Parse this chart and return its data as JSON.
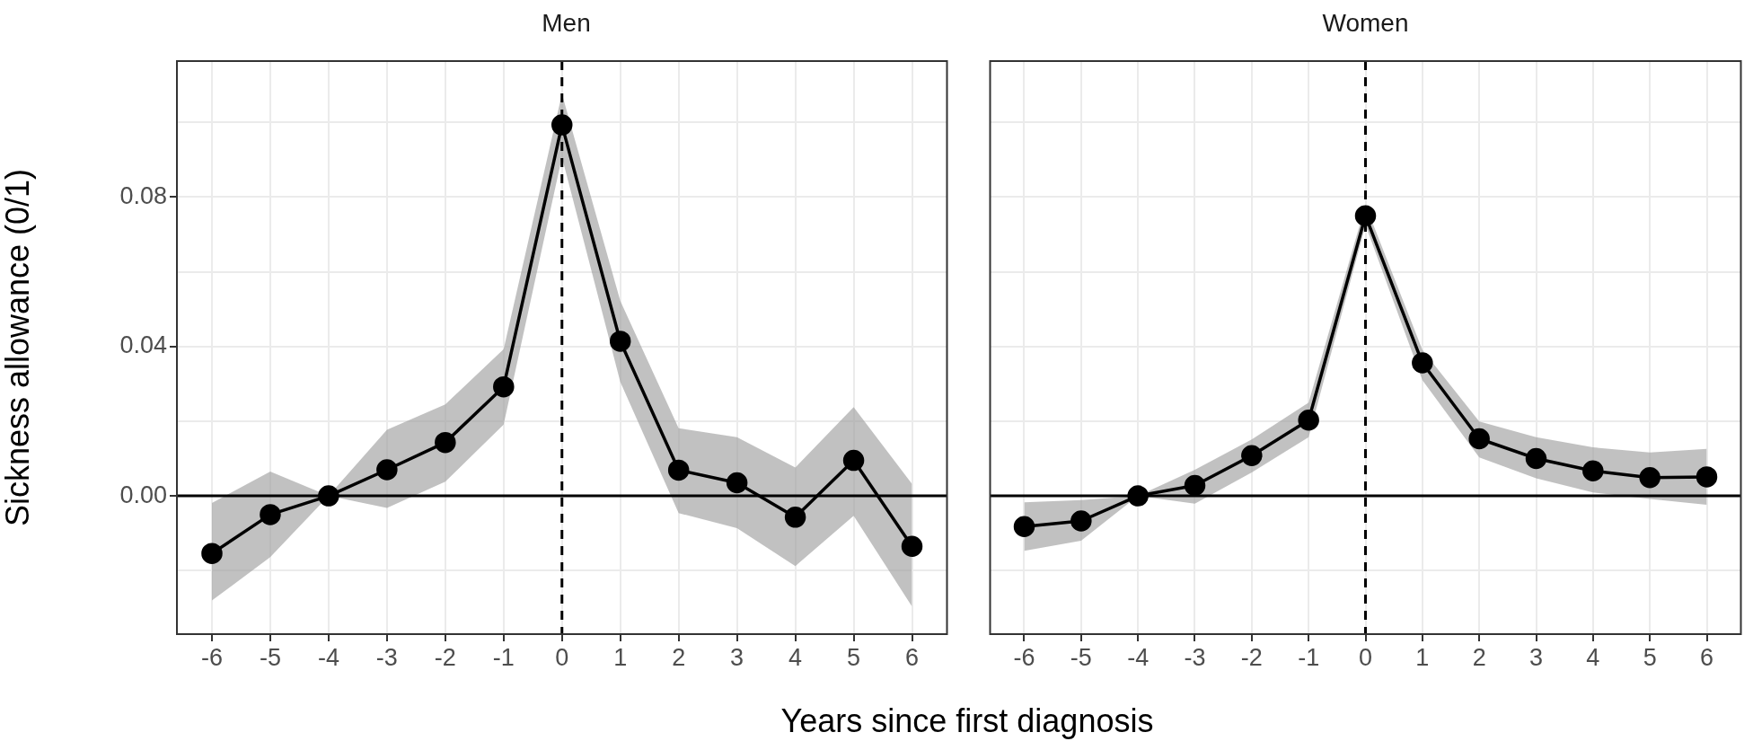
{
  "chart_data": [
    {
      "type": "line",
      "title": "Men",
      "xlabel": "Years since first diagnosis",
      "ylabel": "Sickness allowance (0/1)",
      "x": [
        -6,
        -5,
        -4,
        -3,
        -2,
        -1,
        0,
        1,
        2,
        3,
        4,
        5,
        6
      ],
      "series": [
        {
          "color": "#000000",
          "values": [
            -0.0154,
            -0.005,
            0,
            0.007,
            0.0143,
            0.0292,
            0.0993,
            0.0414,
            0.0069,
            0.0035,
            -0.0057,
            0.0095,
            -0.0135
          ],
          "lower": [
            -0.028,
            -0.0164,
            0,
            -0.0032,
            0.0038,
            0.0191,
            0.0907,
            0.0305,
            -0.0046,
            -0.0086,
            -0.0188,
            -0.0053,
            -0.0296
          ],
          "upper": [
            -0.0019,
            0.0065,
            0,
            0.0177,
            0.0245,
            0.0393,
            0.1076,
            0.0522,
            0.0181,
            0.0157,
            0.0076,
            0.0238,
            0.0032
          ]
        }
      ],
      "xlim": [
        -6.6,
        6.6
      ],
      "xticks": [
        -6,
        -5,
        -4,
        -3,
        -2,
        -1,
        0,
        1,
        2,
        3,
        4,
        5,
        6
      ],
      "ylim": [
        -0.037,
        0.1164
      ],
      "yticks": [
        {
          "value": -0.02,
          "label": null
        },
        {
          "value": 0,
          "label": "0.00"
        },
        {
          "value": 0.02,
          "label": null
        },
        {
          "value": 0.04,
          "label": "0.04"
        },
        {
          "value": 0.06,
          "label": null
        },
        {
          "value": 0.08,
          "label": "0.08"
        },
        {
          "value": 0.1,
          "label": null
        }
      ],
      "ref_lines": [
        {
          "axis": "y",
          "value": 0,
          "line_style": "solid"
        },
        {
          "axis": "x",
          "value": 0,
          "line_style": "dashed"
        }
      ],
      "grid": true,
      "legend": false,
      "marker": "circle",
      "line_style": "solid"
    },
    {
      "type": "line",
      "title": "Women",
      "x": [
        -6,
        -5,
        -4,
        -3,
        -2,
        -1,
        0,
        1,
        2,
        3,
        4,
        5,
        6
      ],
      "series": [
        {
          "color": "#000000",
          "values": [
            -0.0082,
            -0.0067,
            0,
            0.0028,
            0.0108,
            0.0203,
            0.075,
            0.0356,
            0.0153,
            0.01,
            0.0067,
            0.0049,
            0.0051
          ],
          "lower": [
            -0.0147,
            -0.012,
            0,
            -0.0021,
            0.0063,
            0.0157,
            0.0725,
            0.031,
            0.0103,
            0.0047,
            0.0009,
            -0.0008,
            -0.0024
          ],
          "upper": [
            -0.0017,
            -0.0011,
            0,
            0.007,
            0.0151,
            0.025,
            0.0779,
            0.0391,
            0.0199,
            0.0157,
            0.013,
            0.0116,
            0.0126
          ]
        }
      ],
      "xlim": [
        -6.6,
        6.6
      ],
      "xticks": [
        -6,
        -5,
        -4,
        -3,
        -2,
        -1,
        0,
        1,
        2,
        3,
        4,
        5,
        6
      ],
      "ylim": [
        -0.037,
        0.1164
      ],
      "yticks": [
        {
          "value": -0.02,
          "label": null
        },
        {
          "value": 0,
          "label": null
        },
        {
          "value": 0.02,
          "label": null
        },
        {
          "value": 0.04,
          "label": null
        },
        {
          "value": 0.06,
          "label": null
        },
        {
          "value": 0.08,
          "label": null
        },
        {
          "value": 0.1,
          "label": null
        }
      ],
      "ref_lines": [
        {
          "axis": "y",
          "value": 0,
          "line_style": "solid"
        },
        {
          "axis": "x",
          "value": 0,
          "line_style": "dashed"
        }
      ],
      "tick_labels": "x",
      "grid": true,
      "legend": false,
      "marker": "circle",
      "line_style": "solid"
    }
  ]
}
